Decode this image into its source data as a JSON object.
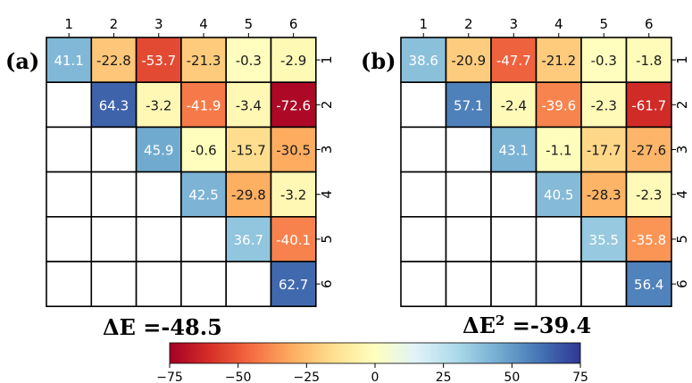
{
  "chart_data": [
    {
      "type": "heatmap",
      "panel_label": "(a)",
      "x_tick_labels": [
        "1",
        "2",
        "3",
        "4",
        "5",
        "6"
      ],
      "y_tick_labels": [
        "1",
        "2",
        "3",
        "4",
        "5",
        "6"
      ],
      "values": [
        [
          41.1,
          -22.8,
          -53.7,
          -21.3,
          -0.3,
          -2.9
        ],
        [
          null,
          64.3,
          -3.2,
          -41.9,
          -3.4,
          -72.6
        ],
        [
          null,
          null,
          45.9,
          -0.6,
          -15.7,
          -30.5
        ],
        [
          null,
          null,
          null,
          42.5,
          -29.8,
          -3.2
        ],
        [
          null,
          null,
          null,
          null,
          36.7,
          -40.1
        ],
        [
          null,
          null,
          null,
          null,
          null,
          62.7
        ]
      ],
      "display": [
        [
          "41.1",
          "-22.8",
          "-53.7",
          "-21.3",
          "-0.3",
          "-2.9"
        ],
        [
          "",
          "64.3",
          "-3.2",
          "-41.9",
          "-3.4",
          "-72.6"
        ],
        [
          "",
          "",
          "45.9",
          "-0.6",
          "-15.7",
          "-30.5"
        ],
        [
          "",
          "",
          "",
          "42.5",
          "-29.8",
          "-3.2"
        ],
        [
          "",
          "",
          "",
          "",
          "36.7",
          "-40.1"
        ],
        [
          "",
          "",
          "",
          "",
          "",
          "62.7"
        ]
      ],
      "summary": {
        "prefix": "ΔE",
        "superscript": "",
        "value": "=-48.5"
      }
    },
    {
      "type": "heatmap",
      "panel_label": "(b)",
      "x_tick_labels": [
        "1",
        "2",
        "3",
        "4",
        "5",
        "6"
      ],
      "y_tick_labels": [
        "1",
        "2",
        "3",
        "4",
        "5",
        "6"
      ],
      "values": [
        [
          38.6,
          -20.9,
          -47.7,
          -21.2,
          -0.3,
          -1.8
        ],
        [
          null,
          57.1,
          -2.4,
          -39.6,
          -2.3,
          -61.7
        ],
        [
          null,
          null,
          43.1,
          -1.1,
          -17.7,
          -27.6
        ],
        [
          null,
          null,
          null,
          40.5,
          -28.3,
          -2.3
        ],
        [
          null,
          null,
          null,
          null,
          35.5,
          -35.8
        ],
        [
          null,
          null,
          null,
          null,
          null,
          56.4
        ]
      ],
      "display": [
        [
          "38.6",
          "-20.9",
          "-47.7",
          "-21.2",
          "-0.3",
          "-1.8"
        ],
        [
          "",
          "57.1",
          "-2.4",
          "-39.6",
          "-2.3",
          "-61.7"
        ],
        [
          "",
          "",
          "43.1",
          "-1.1",
          "-17.7",
          "-27.6"
        ],
        [
          "",
          "",
          "",
          "40.5",
          "-28.3",
          "-2.3"
        ],
        [
          "",
          "",
          "",
          "",
          "35.5",
          "-35.8"
        ],
        [
          "",
          "",
          "",
          "",
          "",
          "56.4"
        ]
      ],
      "summary": {
        "prefix": "ΔE",
        "superscript": "2",
        "value": "=-39.4"
      }
    }
  ],
  "colorbar": {
    "colormap": "RdYlBu",
    "range": [
      -75,
      75
    ],
    "tick_labels": [
      "−75",
      "−50",
      "−25",
      "0",
      "25",
      "50",
      "75"
    ],
    "tick_values": [
      -75,
      -50,
      -25,
      0,
      25,
      50,
      75
    ]
  },
  "colors": {
    "colormap_stops": [
      "#a50026",
      "#d73027",
      "#f46d43",
      "#fdae61",
      "#fee090",
      "#ffffbf",
      "#e0f3f8",
      "#abd9e9",
      "#74add1",
      "#4575b4",
      "#313695"
    ],
    "empty_cell": "#ffffff",
    "grid_line": "#000000"
  }
}
